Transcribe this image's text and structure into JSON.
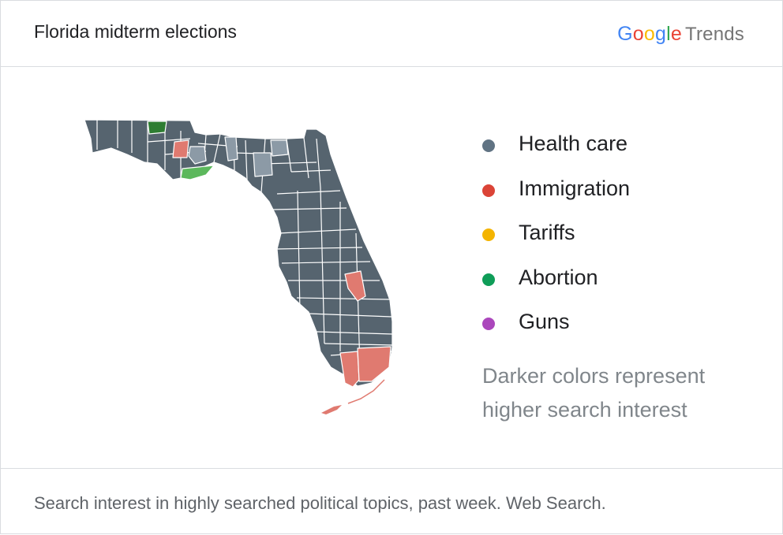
{
  "header": {
    "title": "Florida midterm elections",
    "logo": {
      "google": "Google",
      "trends": "Trends"
    }
  },
  "legend": [
    {
      "label": "Health care",
      "color": "#607383"
    },
    {
      "label": "Immigration",
      "color": "#db4437"
    },
    {
      "label": "Tariffs",
      "color": "#f4b400"
    },
    {
      "label": "Abortion",
      "color": "#0f9d58"
    },
    {
      "label": "Guns",
      "color": "#ab47bc"
    }
  ],
  "note": "Darker colors represent higher search interest",
  "footer": {
    "text": "Search interest in highly searched political topics, past week. Web Search."
  },
  "map": {
    "state": "Florida",
    "colors": {
      "health_care_dark": "#56646f",
      "health_care_light": "#8c9aa6",
      "immigration": "#e07a70",
      "abortion_dark": "#2e7d32",
      "abortion_light": "#5cb85c"
    }
  }
}
